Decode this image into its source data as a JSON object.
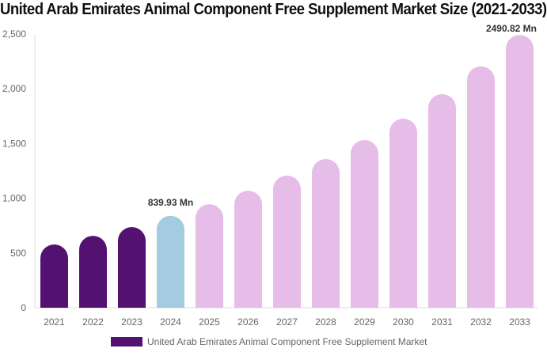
{
  "chart_data": {
    "type": "bar",
    "title": "United Arab Emirates Animal Component Free Supplement Market Size (2021-2033)",
    "categories": [
      "2021",
      "2022",
      "2023",
      "2024",
      "2025",
      "2026",
      "2027",
      "2028",
      "2029",
      "2030",
      "2031",
      "2032",
      "2033"
    ],
    "series": [
      {
        "name": "United Arab Emirates Animal Component Free Supplement Market",
        "values": [
          578,
          657,
          737,
          839.93,
          946,
          1069,
          1207,
          1358,
          1532,
          1727,
          1951,
          2204,
          2490.82
        ]
      }
    ],
    "data_labels": {
      "3": "839.93 Mn",
      "12": "2490.82 Mn"
    },
    "ylim": [
      0,
      2500
    ],
    "yticks": [
      "0",
      "500",
      "1,000",
      "1,500",
      "2,000",
      "2,500"
    ],
    "ytick_values": [
      0,
      500,
      1000,
      1500,
      2000,
      2500
    ],
    "grid": false,
    "legend_position": "bottom",
    "colors": {
      "historical": "#531272",
      "base_year": "#a4cbdf",
      "forecast": "#e6bce8"
    },
    "bar_color_groups": [
      "historical",
      "historical",
      "historical",
      "base_year",
      "forecast",
      "forecast",
      "forecast",
      "forecast",
      "forecast",
      "forecast",
      "forecast",
      "forecast",
      "forecast"
    ]
  }
}
